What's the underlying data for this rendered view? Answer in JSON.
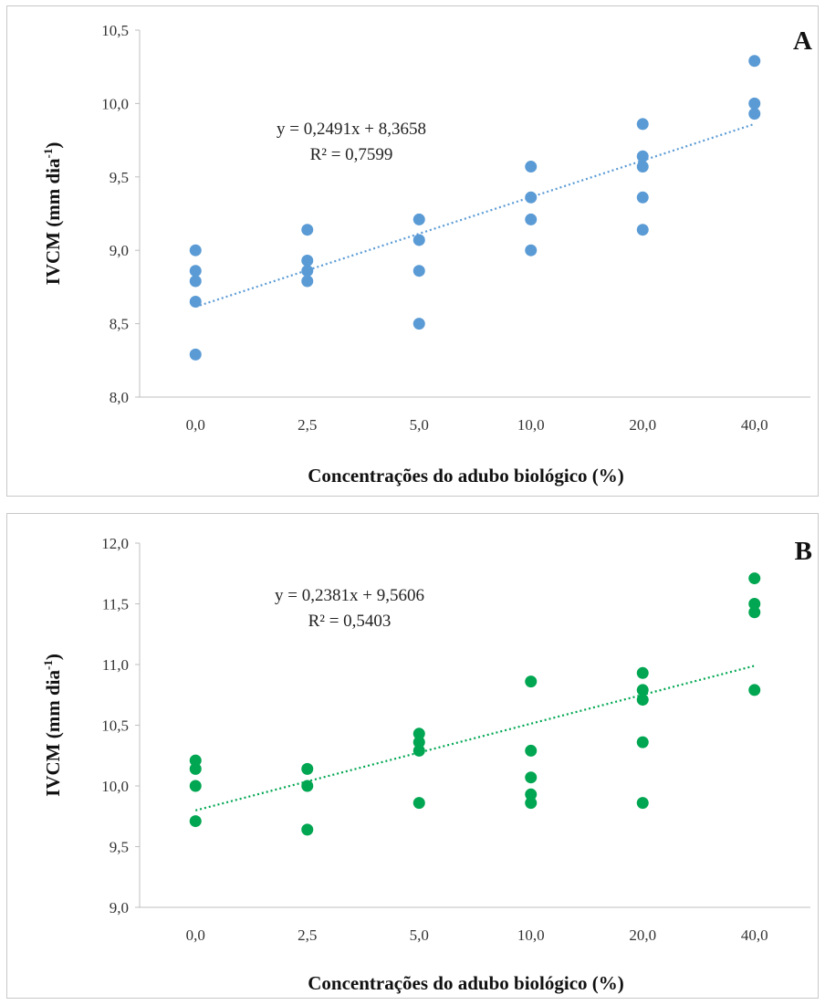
{
  "chart_data": [
    {
      "id": "A",
      "type": "scatter",
      "panel_label": "A",
      "ylabel": "IVCM (mm dia",
      "ylabel_sup": "-1",
      "ylabel_close": ")",
      "xlabel": "Concentrações do adubo biológico (%)",
      "categories": [
        "0,0",
        "2,5",
        "5,0",
        "10,0",
        "20,0",
        "40,0"
      ],
      "ylim": [
        8.0,
        10.5
      ],
      "yticks": [
        "8,0",
        "8,5",
        "9,0",
        "9,5",
        "10,0",
        "10,5"
      ],
      "ytick_values": [
        8.0,
        8.5,
        9.0,
        9.5,
        10.0,
        10.5
      ],
      "color": "#5b9bd5",
      "trend_color": "#5b9bd5",
      "equation": "y = 0,2491x + 8,3658",
      "r2": "R² = 0,7599",
      "trend": {
        "slope": 0.2491,
        "intercept": 8.3658
      },
      "points": [
        {
          "x": 1,
          "y": 9.0
        },
        {
          "x": 1,
          "y": 8.86
        },
        {
          "x": 1,
          "y": 8.79
        },
        {
          "x": 1,
          "y": 8.65
        },
        {
          "x": 1,
          "y": 8.29
        },
        {
          "x": 2,
          "y": 9.14
        },
        {
          "x": 2,
          "y": 8.93
        },
        {
          "x": 2,
          "y": 8.86
        },
        {
          "x": 2,
          "y": 8.79
        },
        {
          "x": 3,
          "y": 9.21
        },
        {
          "x": 3,
          "y": 9.07
        },
        {
          "x": 3,
          "y": 8.86
        },
        {
          "x": 3,
          "y": 8.5
        },
        {
          "x": 4,
          "y": 9.57
        },
        {
          "x": 4,
          "y": 9.36
        },
        {
          "x": 4,
          "y": 9.21
        },
        {
          "x": 4,
          "y": 9.0
        },
        {
          "x": 5,
          "y": 9.86
        },
        {
          "x": 5,
          "y": 9.64
        },
        {
          "x": 5,
          "y": 9.57
        },
        {
          "x": 5,
          "y": 9.36
        },
        {
          "x": 5,
          "y": 9.14
        },
        {
          "x": 6,
          "y": 10.29
        },
        {
          "x": 6,
          "y": 10.0
        },
        {
          "x": 6,
          "y": 9.93
        }
      ]
    },
    {
      "id": "B",
      "type": "scatter",
      "panel_label": "B",
      "ylabel": "IVCM (mm dia",
      "ylabel_sup": "-1",
      "ylabel_close": ")",
      "xlabel": "Concentrações do adubo biológico (%)",
      "categories": [
        "0,0",
        "2,5",
        "5,0",
        "10,0",
        "20,0",
        "40,0"
      ],
      "ylim": [
        9.0,
        12.0
      ],
      "yticks": [
        "9,0",
        "9,5",
        "10,0",
        "10,5",
        "11,0",
        "11,5",
        "12,0"
      ],
      "ytick_values": [
        9.0,
        9.5,
        10.0,
        10.5,
        11.0,
        11.5,
        12.0
      ],
      "color": "#00a651",
      "trend_color": "#00a651",
      "equation": "y = 0,2381x + 9,5606",
      "r2": "R² = 0,5403",
      "trend": {
        "slope": 0.2381,
        "intercept": 9.5606
      },
      "points": [
        {
          "x": 1,
          "y": 10.21
        },
        {
          "x": 1,
          "y": 10.14
        },
        {
          "x": 1,
          "y": 10.0
        },
        {
          "x": 1,
          "y": 9.71
        },
        {
          "x": 2,
          "y": 10.14
        },
        {
          "x": 2,
          "y": 10.0
        },
        {
          "x": 2,
          "y": 9.64
        },
        {
          "x": 3,
          "y": 10.43
        },
        {
          "x": 3,
          "y": 10.36
        },
        {
          "x": 3,
          "y": 10.29
        },
        {
          "x": 3,
          "y": 9.86
        },
        {
          "x": 4,
          "y": 10.86
        },
        {
          "x": 4,
          "y": 10.29
        },
        {
          "x": 4,
          "y": 10.07
        },
        {
          "x": 4,
          "y": 9.93
        },
        {
          "x": 4,
          "y": 9.86
        },
        {
          "x": 5,
          "y": 10.93
        },
        {
          "x": 5,
          "y": 10.79
        },
        {
          "x": 5,
          "y": 10.71
        },
        {
          "x": 5,
          "y": 10.36
        },
        {
          "x": 5,
          "y": 9.86
        },
        {
          "x": 6,
          "y": 11.71
        },
        {
          "x": 6,
          "y": 11.5
        },
        {
          "x": 6,
          "y": 11.43
        },
        {
          "x": 6,
          "y": 10.79
        }
      ]
    }
  ]
}
